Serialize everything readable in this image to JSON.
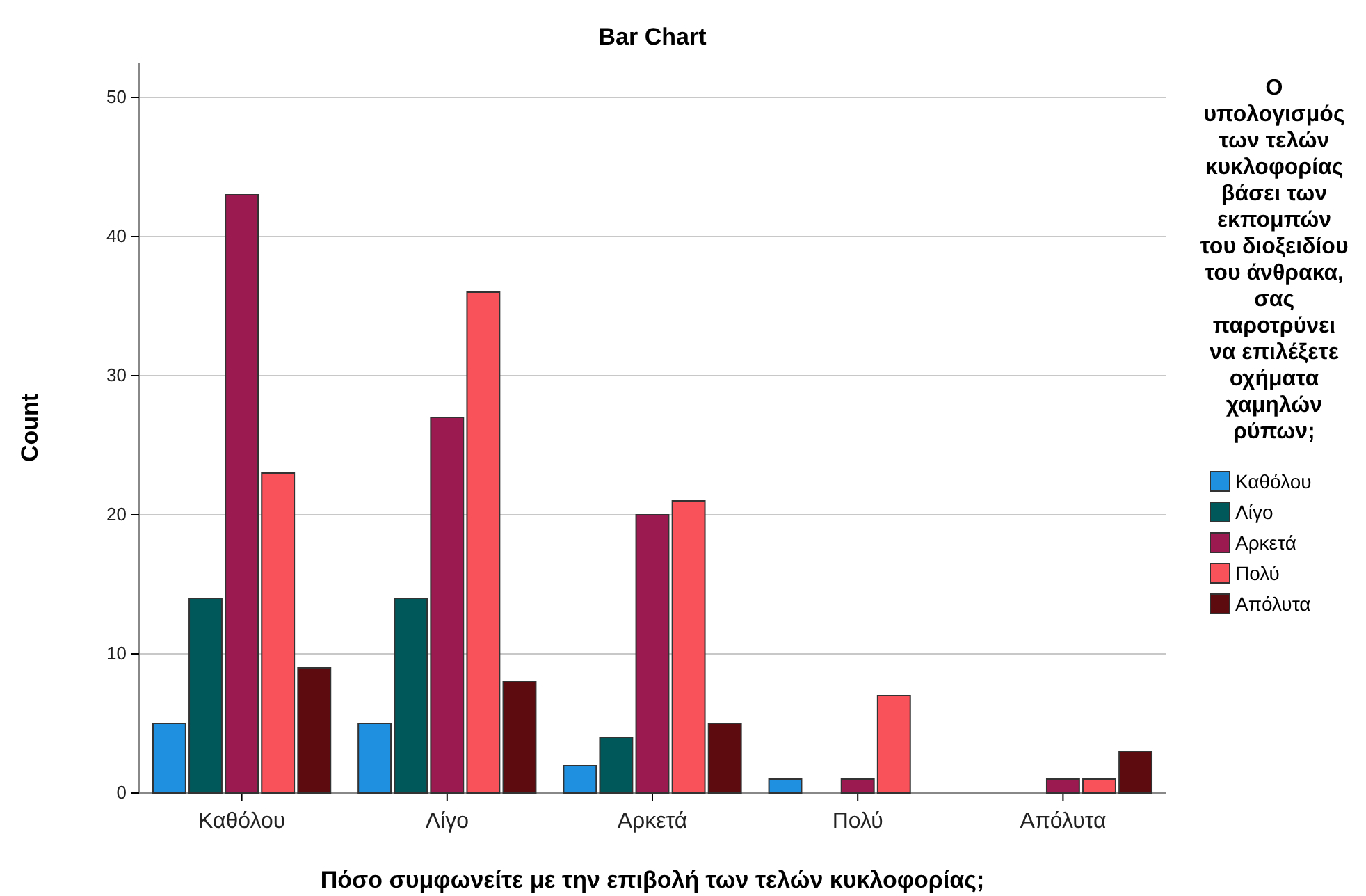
{
  "chart_data": {
    "type": "bar",
    "title": "Bar Chart",
    "xlabel": "Πόσο συμφωνείτε με την επιβολή των τελών κυκλοφορίας;",
    "ylabel": "Count",
    "legend_title": "Ο υπολογισμός των τελών κυκλοφορίας βάσει των εκπομπών του διοξειδίου του άνθρακα, σας παροτρύνει να επιλέξετε οχήματα χαμηλών ρύπων;",
    "categories": [
      "Καθόλου",
      "Λίγο",
      "Αρκετά",
      "Πολύ",
      "Απόλυτα"
    ],
    "series": [
      {
        "name": "Καθόλου",
        "color": "#1f8fe0",
        "values": [
          5,
          5,
          2,
          1,
          null
        ]
      },
      {
        "name": "Λίγο",
        "color": "#00585a",
        "values": [
          14,
          14,
          4,
          null,
          null
        ]
      },
      {
        "name": "Αρκετά",
        "color": "#9b1b50",
        "values": [
          43,
          27,
          20,
          1,
          1
        ]
      },
      {
        "name": "Πολύ",
        "color": "#f9525a",
        "values": [
          23,
          36,
          21,
          7,
          1
        ]
      },
      {
        "name": "Απόλυτα",
        "color": "#5d0b0e",
        "values": [
          9,
          8,
          5,
          null,
          3
        ]
      }
    ],
    "ylim": [
      0,
      52.5
    ],
    "yticks": [
      0,
      10,
      20,
      30,
      40,
      50
    ],
    "grid": "y",
    "legend": "right"
  }
}
